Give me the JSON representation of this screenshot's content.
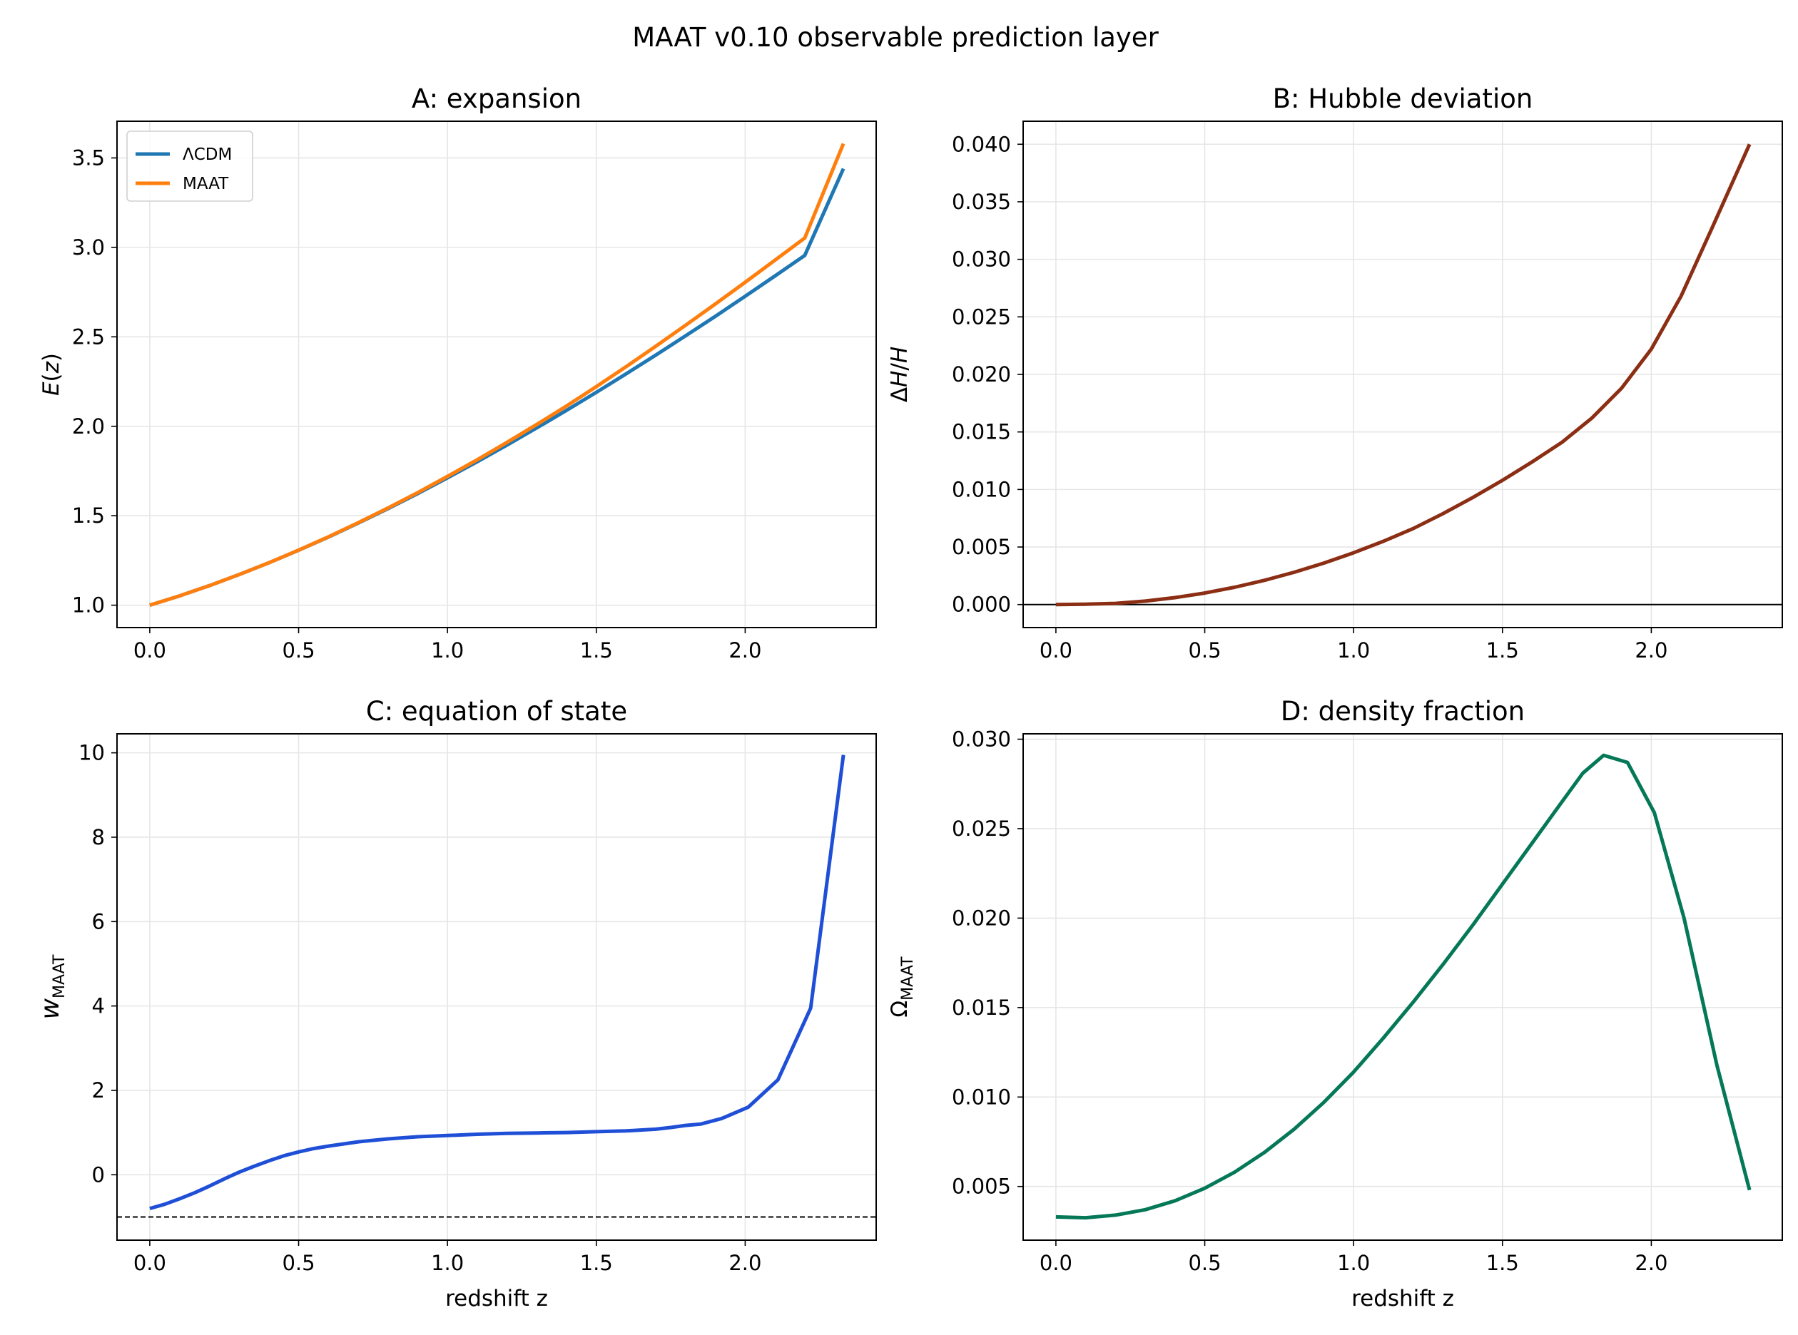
{
  "figure": {
    "title": "MAAT v0.10 observable prediction layer"
  },
  "colors": {
    "lcdm": "#1f77b4",
    "maat": "#ff7f0e",
    "hubble": "#8b2e14",
    "eos": "#1f4fd6",
    "density": "#047857",
    "grid": "#e6e6e6",
    "refline": "#000000"
  },
  "chart_data": [
    {
      "id": "A",
      "type": "line",
      "title": "A: expansion",
      "xlabel": "",
      "ylabel": "E(z)",
      "xlim": [
        -0.11,
        2.44
      ],
      "ylim": [
        0.875,
        3.705
      ],
      "xticks": [
        0.0,
        0.5,
        1.0,
        1.5,
        2.0
      ],
      "xtick_labels": [
        "0.0",
        "0.5",
        "1.0",
        "1.5",
        "2.0"
      ],
      "yticks": [
        1.0,
        1.5,
        2.0,
        2.5,
        3.0,
        3.5
      ],
      "ytick_labels": [
        "1.0",
        "1.5",
        "2.0",
        "2.5",
        "3.0",
        "3.5"
      ],
      "grid": true,
      "legend": "upper-left",
      "series": [
        {
          "name": "ΛCDM",
          "color_key": "lcdm",
          "x": [
            0.0,
            0.1,
            0.2,
            0.3,
            0.4,
            0.5,
            0.6,
            0.7,
            0.8,
            0.9,
            1.0,
            1.1,
            1.2,
            1.3,
            1.4,
            1.5,
            1.6,
            1.7,
            1.8,
            1.9,
            2.0,
            2.1,
            2.2,
            2.33
          ],
          "y": [
            1.0,
            1.052,
            1.109,
            1.171,
            1.237,
            1.307,
            1.381,
            1.459,
            1.54,
            1.624,
            1.712,
            1.802,
            1.895,
            1.991,
            2.089,
            2.19,
            2.293,
            2.398,
            2.506,
            2.615,
            2.727,
            2.84,
            2.955,
            3.44
          ]
        },
        {
          "name": "MAAT",
          "color_key": "maat",
          "x": [
            0.0,
            0.1,
            0.2,
            0.3,
            0.4,
            0.5,
            0.6,
            0.7,
            0.8,
            0.9,
            1.0,
            1.1,
            1.2,
            1.3,
            1.4,
            1.5,
            1.6,
            1.7,
            1.8,
            1.9,
            2.0,
            2.1,
            2.2,
            2.33
          ],
          "y": [
            1.0,
            1.052,
            1.109,
            1.171,
            1.237,
            1.308,
            1.382,
            1.461,
            1.543,
            1.629,
            1.72,
            1.813,
            1.91,
            2.01,
            2.114,
            2.222,
            2.333,
            2.448,
            2.565,
            2.684,
            2.805,
            2.928,
            3.052,
            3.58
          ]
        }
      ]
    },
    {
      "id": "B",
      "type": "line",
      "title": "B: Hubble deviation",
      "xlabel": "",
      "ylabel": "ΔH/H",
      "xlim": [
        -0.11,
        2.44
      ],
      "ylim": [
        -0.002,
        0.042
      ],
      "xticks": [
        0.0,
        0.5,
        1.0,
        1.5,
        2.0
      ],
      "xtick_labels": [
        "0.0",
        "0.5",
        "1.0",
        "1.5",
        "2.0"
      ],
      "yticks": [
        0.0,
        0.005,
        0.01,
        0.015,
        0.02,
        0.025,
        0.03,
        0.035,
        0.04
      ],
      "ytick_labels": [
        "0.000",
        "0.005",
        "0.010",
        "0.015",
        "0.020",
        "0.025",
        "0.030",
        "0.035",
        "0.040"
      ],
      "grid": true,
      "reference_line_y": 0.0,
      "series": [
        {
          "name": "",
          "color_key": "hubble",
          "x": [
            0.0,
            0.1,
            0.2,
            0.3,
            0.4,
            0.5,
            0.6,
            0.7,
            0.8,
            0.9,
            1.0,
            1.1,
            1.2,
            1.3,
            1.4,
            1.5,
            1.6,
            1.7,
            1.8,
            1.9,
            2.0,
            2.1,
            2.2,
            2.33
          ],
          "y": [
            0.0,
            3e-05,
            0.0001,
            0.0003,
            0.0006,
            0.001,
            0.0015,
            0.0021,
            0.0028,
            0.0036,
            0.0045,
            0.0055,
            0.0066,
            0.0079,
            0.0093,
            0.0108,
            0.0124,
            0.0141,
            0.0162,
            0.0188,
            0.0222,
            0.0268,
            0.0325,
            0.04
          ]
        }
      ]
    },
    {
      "id": "C",
      "type": "line",
      "title": "C: equation of state",
      "xlabel": "redshift z",
      "ylabel": "w_MAAT",
      "xlim": [
        -0.11,
        2.44
      ],
      "ylim": [
        -1.55,
        10.45
      ],
      "xticks": [
        0.0,
        0.5,
        1.0,
        1.5,
        2.0
      ],
      "xtick_labels": [
        "0.0",
        "0.5",
        "1.0",
        "1.5",
        "2.0"
      ],
      "yticks": [
        0,
        2,
        4,
        6,
        8,
        10
      ],
      "ytick_labels": [
        "0",
        "2",
        "4",
        "6",
        "8",
        "10"
      ],
      "grid": true,
      "reference_line_y": -1.0,
      "series": [
        {
          "name": "",
          "color_key": "eos",
          "x": [
            0.0,
            0.05,
            0.1,
            0.15,
            0.2,
            0.25,
            0.3,
            0.35,
            0.4,
            0.45,
            0.5,
            0.55,
            0.6,
            0.65,
            0.7,
            0.8,
            0.9,
            1.0,
            1.1,
            1.2,
            1.3,
            1.4,
            1.5,
            1.6,
            1.7,
            1.75,
            1.8,
            1.85,
            1.92,
            2.01,
            2.11,
            2.22,
            2.33
          ],
          "y": [
            -0.8,
            -0.7,
            -0.57,
            -0.43,
            -0.27,
            -0.1,
            0.06,
            0.2,
            0.33,
            0.45,
            0.54,
            0.62,
            0.68,
            0.73,
            0.78,
            0.85,
            0.9,
            0.93,
            0.96,
            0.98,
            0.99,
            1.0,
            1.02,
            1.04,
            1.08,
            1.12,
            1.17,
            1.2,
            1.33,
            1.6,
            2.25,
            3.95,
            9.95
          ]
        }
      ]
    },
    {
      "id": "D",
      "type": "line",
      "title": "D: density fraction",
      "xlabel": "redshift z",
      "ylabel": "Ω_MAAT",
      "xlim": [
        -0.11,
        2.44
      ],
      "ylim": [
        0.002,
        0.0303
      ],
      "xticks": [
        0.0,
        0.5,
        1.0,
        1.5,
        2.0
      ],
      "xtick_labels": [
        "0.0",
        "0.5",
        "1.0",
        "1.5",
        "2.0"
      ],
      "yticks": [
        0.005,
        0.01,
        0.015,
        0.02,
        0.025,
        0.03
      ],
      "ytick_labels": [
        "0.005",
        "0.010",
        "0.015",
        "0.020",
        "0.025",
        "0.030"
      ],
      "grid": true,
      "series": [
        {
          "name": "",
          "color_key": "density",
          "x": [
            0.0,
            0.1,
            0.2,
            0.3,
            0.4,
            0.5,
            0.6,
            0.7,
            0.8,
            0.9,
            1.0,
            1.1,
            1.2,
            1.3,
            1.4,
            1.5,
            1.6,
            1.7,
            1.77,
            1.84,
            1.92,
            2.01,
            2.11,
            2.22,
            2.33
          ],
          "y": [
            0.0033,
            0.00325,
            0.0034,
            0.0037,
            0.0042,
            0.0049,
            0.0058,
            0.0069,
            0.0082,
            0.0097,
            0.0114,
            0.0133,
            0.0153,
            0.0174,
            0.0196,
            0.0219,
            0.0242,
            0.0265,
            0.0281,
            0.0291,
            0.0287,
            0.0259,
            0.02,
            0.0118,
            0.0048
          ]
        }
      ]
    }
  ]
}
